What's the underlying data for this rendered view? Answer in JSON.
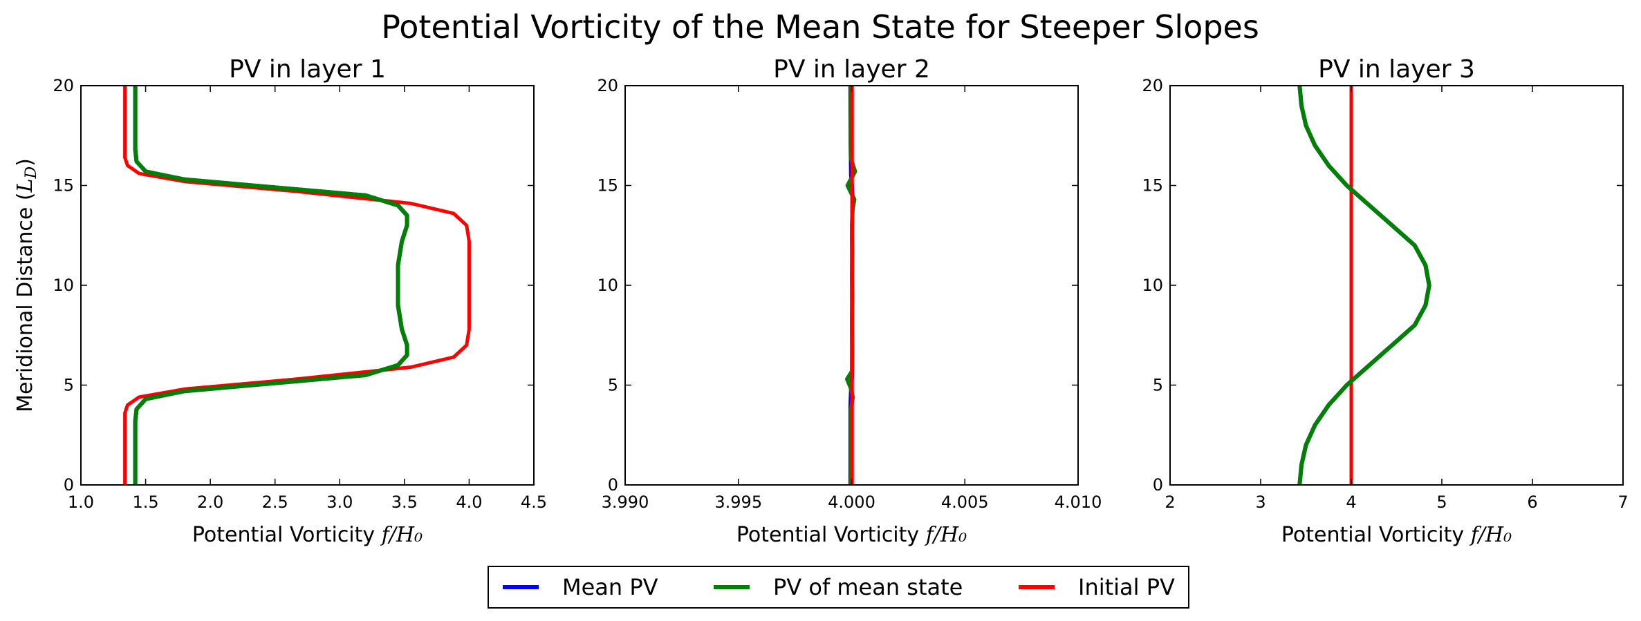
{
  "suptitle": "Potential Vorticity of the Mean State for Steeper Slopes",
  "legend": {
    "placement": "bottom-center",
    "items": [
      {
        "label": "Mean PV",
        "color": "#0000ff"
      },
      {
        "label": "PV of mean state",
        "color": "#008000"
      },
      {
        "label": "Initial PV",
        "color": "#ff0000"
      }
    ]
  },
  "chart_data": [
    {
      "type": "line",
      "title": "PV in layer 1",
      "xlabel_text": "Potential Vorticity ",
      "xlabel_math": "f/H₀",
      "ylabel_text": "Meridional Distance (",
      "ylabel_math": "L_D",
      "ylabel_suffix": ")",
      "xlim": [
        1.0,
        4.5
      ],
      "ylim": [
        0,
        20
      ],
      "xticks": [
        "1.0",
        "1.5",
        "2.0",
        "2.5",
        "3.0",
        "3.5",
        "4.0",
        "4.5"
      ],
      "yticks": [
        "0",
        "5",
        "10",
        "15",
        "20"
      ],
      "series": [
        {
          "name": "Initial PV",
          "color": "#ff0000",
          "x": [
            1.34,
            1.34,
            1.34,
            1.36,
            1.45,
            1.8,
            2.67,
            3.55,
            3.88,
            3.98,
            4.0,
            4.0,
            4.0,
            3.98,
            3.88,
            3.55,
            2.67,
            1.8,
            1.45,
            1.36,
            1.34,
            1.34,
            1.34
          ],
          "y": [
            0,
            3.0,
            3.6,
            4.0,
            4.4,
            4.8,
            5.3,
            5.9,
            6.4,
            7.0,
            7.8,
            10.0,
            12.2,
            13.0,
            13.6,
            14.1,
            14.7,
            15.2,
            15.6,
            16.0,
            16.4,
            17.0,
            20
          ]
        },
        {
          "name": "Mean PV",
          "color": "#0000ff",
          "x": [
            1.42,
            1.42,
            1.43,
            1.5,
            1.8,
            2.5,
            3.2,
            3.45,
            3.52,
            3.52,
            3.48,
            3.45,
            3.45,
            3.48,
            3.52,
            3.52,
            3.45,
            3.2,
            2.5,
            1.8,
            1.5,
            1.43,
            1.42,
            1.42
          ],
          "y": [
            0,
            3.2,
            3.8,
            4.3,
            4.7,
            5.1,
            5.5,
            6.0,
            6.5,
            7.0,
            7.8,
            9.0,
            11.0,
            12.2,
            13.0,
            13.5,
            14.0,
            14.5,
            14.9,
            15.3,
            15.7,
            16.2,
            16.8,
            20
          ]
        },
        {
          "name": "PV of mean state",
          "color": "#008000",
          "x": [
            1.42,
            1.42,
            1.43,
            1.5,
            1.8,
            2.5,
            3.2,
            3.45,
            3.52,
            3.52,
            3.48,
            3.45,
            3.45,
            3.48,
            3.52,
            3.52,
            3.45,
            3.2,
            2.5,
            1.8,
            1.5,
            1.43,
            1.42,
            1.42
          ],
          "y": [
            0,
            3.2,
            3.8,
            4.3,
            4.7,
            5.1,
            5.5,
            6.0,
            6.5,
            7.0,
            7.8,
            9.0,
            11.0,
            12.2,
            13.0,
            13.5,
            14.0,
            14.5,
            14.9,
            15.3,
            15.7,
            16.2,
            16.8,
            20
          ]
        }
      ]
    },
    {
      "type": "line",
      "title": "PV in layer 2",
      "xlabel_text": "Potential Vorticity ",
      "xlabel_math": "f/H₀",
      "xlim": [
        3.99,
        4.01
      ],
      "ylim": [
        0,
        20
      ],
      "xticks": [
        "3.990",
        "3.995",
        "4.000",
        "4.005",
        "4.010"
      ],
      "yticks": [
        "0",
        "5",
        "10",
        "15",
        "20"
      ],
      "series": [
        {
          "name": "Mean PV",
          "color": "#0000ff",
          "x": [
            3.99995,
            3.99995,
            3.99998,
            4.00002,
            4.00003,
            4.00002,
            4.00003,
            4.00002,
            4.00003,
            4.00002,
            4.00003,
            4.00004,
            4.00002,
            3.99998,
            3.99996,
            3.99995
          ],
          "y": [
            0,
            4.0,
            4.8,
            5.5,
            6.5,
            8.0,
            9.5,
            10.5,
            11.5,
            12.5,
            13.5,
            14.3,
            14.9,
            15.5,
            17.0,
            20
          ]
        },
        {
          "name": "PV of mean state",
          "color": "#008000",
          "x": [
            3.99998,
            3.99998,
            4.00005,
            3.99995,
            3.9998,
            4.00002,
            4.00002,
            4.00002,
            4.00002,
            4.00004,
            4.00012,
            3.99982,
            4.00015,
            3.99998,
            3.99998
          ],
          "y": [
            0,
            3.8,
            4.4,
            4.9,
            5.3,
            5.7,
            7.0,
            10.0,
            13.0,
            13.8,
            14.3,
            15.0,
            15.7,
            16.3,
            20
          ]
        },
        {
          "name": "Initial PV",
          "color": "#ff0000",
          "x": [
            4.00002,
            4.00002
          ],
          "y": [
            0,
            20
          ]
        }
      ]
    },
    {
      "type": "line",
      "title": "PV in layer 3",
      "xlabel_text": "Potential Vorticity ",
      "xlabel_math": "f/H₀",
      "xlim": [
        2,
        7
      ],
      "ylim": [
        0,
        20
      ],
      "xticks": [
        "2",
        "3",
        "4",
        "5",
        "6",
        "7"
      ],
      "yticks": [
        "0",
        "5",
        "10",
        "15",
        "20"
      ],
      "series": [
        {
          "name": "Initial PV",
          "color": "#ff0000",
          "x": [
            4.0,
            4.0
          ],
          "y": [
            0,
            20
          ]
        },
        {
          "name": "Mean PV",
          "color": "#0000ff",
          "x": [
            3.43,
            3.45,
            3.5,
            3.6,
            3.75,
            3.95,
            4.2,
            4.45,
            4.7,
            4.82,
            4.86,
            4.82,
            4.7,
            4.45,
            4.2,
            3.95,
            3.75,
            3.6,
            3.5,
            3.45,
            3.43
          ],
          "y": [
            0,
            1.0,
            2.0,
            3.0,
            4.0,
            5.0,
            6.0,
            7.0,
            8.0,
            9.0,
            10.0,
            11.0,
            12.0,
            13.0,
            14.0,
            15.0,
            16.0,
            17.0,
            18.0,
            19.0,
            20
          ]
        },
        {
          "name": "PV of mean state",
          "color": "#008000",
          "x": [
            3.43,
            3.45,
            3.5,
            3.6,
            3.75,
            3.95,
            4.2,
            4.45,
            4.7,
            4.82,
            4.86,
            4.82,
            4.7,
            4.45,
            4.2,
            3.95,
            3.75,
            3.6,
            3.5,
            3.45,
            3.43
          ],
          "y": [
            0,
            1.0,
            2.0,
            3.0,
            4.0,
            5.0,
            6.0,
            7.0,
            8.0,
            9.0,
            10.0,
            11.0,
            12.0,
            13.0,
            14.0,
            15.0,
            16.0,
            17.0,
            18.0,
            19.0,
            20
          ]
        }
      ]
    }
  ]
}
